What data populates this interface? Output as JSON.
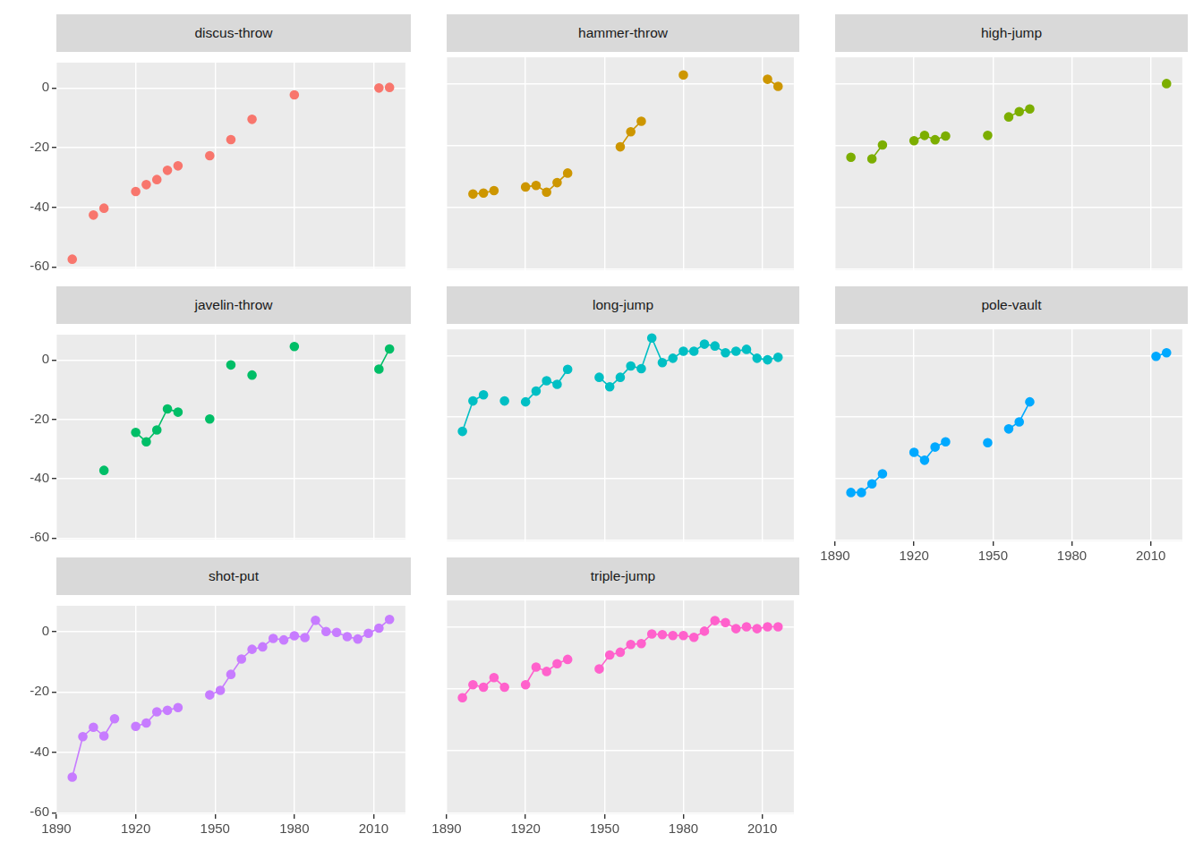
{
  "chart_data": [
    {
      "type": "line",
      "title": "discus-throw",
      "color": "#F8766D",
      "marker": "circle",
      "line_style": "none",
      "grid": true,
      "tick_labels": "y",
      "x": [
        1896,
        1900,
        1904,
        1908,
        1912,
        1916,
        1920,
        1924,
        1928,
        1932,
        1936,
        1940,
        1944,
        1948,
        1952,
        1956,
        1960,
        1964,
        1968,
        1972,
        1976,
        1980,
        1984,
        1988,
        1992,
        1996,
        2000,
        2004,
        2008,
        2012,
        2016
      ],
      "values": [
        -57.4,
        null,
        -42.6,
        -40.3,
        null,
        null,
        -34.7,
        -32.4,
        -30.7,
        -27.6,
        -26.1,
        null,
        null,
        -22.7,
        null,
        -17.3,
        null,
        -10.5,
        null,
        null,
        null,
        -2.3,
        null,
        null,
        null,
        null,
        null,
        null,
        null,
        0,
        0.2
      ],
      "xlim": [
        1890,
        2022
      ],
      "xticks": [
        1890,
        1920,
        1950,
        1980,
        2010
      ],
      "ylim": [
        -60.5,
        8.5
      ],
      "yticks": [
        -60,
        -40,
        -20,
        0
      ]
    },
    {
      "type": "line",
      "title": "hammer-throw",
      "color": "#CD9600",
      "marker": "circle",
      "line_style": "solid",
      "grid": true,
      "tick_labels": false,
      "x": [
        1896,
        1900,
        1904,
        1908,
        1912,
        1916,
        1920,
        1924,
        1928,
        1932,
        1936,
        1940,
        1944,
        1948,
        1952,
        1956,
        1960,
        1964,
        1968,
        1972,
        1976,
        1980,
        1984,
        1988,
        1992,
        1996,
        2000,
        2004,
        2008,
        2012,
        2016
      ],
      "values": [
        null,
        -35.8,
        -35.5,
        -34.7,
        null,
        null,
        -33.5,
        -33,
        -35.2,
        -32.1,
        -29,
        null,
        null,
        null,
        null,
        -20.5,
        -15.6,
        -12.2,
        null,
        null,
        null,
        2.8,
        null,
        null,
        null,
        null,
        null,
        null,
        null,
        1.4,
        -0.9
      ],
      "xlim": [
        1890,
        2022
      ],
      "xticks": [
        1890,
        1920,
        1950,
        1980,
        2010
      ],
      "ylim": [
        -60.5,
        8.5
      ],
      "yticks": [
        -60,
        -40,
        -20,
        0
      ]
    },
    {
      "type": "line",
      "title": "high-jump",
      "color": "#7CAE00",
      "marker": "circle",
      "line_style": "solid",
      "grid": true,
      "tick_labels": false,
      "x": [
        1896,
        1900,
        1904,
        1908,
        1912,
        1916,
        1920,
        1924,
        1928,
        1932,
        1936,
        1940,
        1944,
        1948,
        1952,
        1956,
        1960,
        1964,
        1968,
        1972,
        1976,
        1980,
        1984,
        1988,
        1992,
        1996,
        2000,
        2004,
        2008,
        2012,
        2016
      ],
      "values": [
        -23.9,
        null,
        -24.4,
        -19.9,
        null,
        null,
        -18.5,
        -16.8,
        -18.2,
        -17,
        null,
        null,
        null,
        -16.8,
        null,
        -10.8,
        -9.1,
        -8.2,
        null,
        null,
        null,
        null,
        null,
        null,
        null,
        null,
        null,
        null,
        null,
        null,
        0
      ],
      "xlim": [
        1890,
        2022
      ],
      "xticks": [
        1890,
        1920,
        1950,
        1980,
        2010
      ],
      "ylim": [
        -60.5,
        8.5
      ],
      "yticks": [
        -60,
        -40,
        -20,
        0
      ]
    },
    {
      "type": "line",
      "title": "javelin-throw",
      "color": "#00BE67",
      "marker": "circle",
      "line_style": "solid",
      "grid": true,
      "tick_labels": "y",
      "x": [
        1896,
        1900,
        1904,
        1908,
        1912,
        1916,
        1920,
        1924,
        1928,
        1932,
        1936,
        1940,
        1944,
        1948,
        1952,
        1956,
        1960,
        1964,
        1968,
        1972,
        1976,
        1980,
        1984,
        1988,
        1992,
        1996,
        2000,
        2004,
        2008,
        2012,
        2016
      ],
      "values": [
        null,
        null,
        null,
        -37.2,
        null,
        null,
        -24.4,
        -27.6,
        -23.6,
        -16.5,
        -17.6,
        null,
        null,
        -19.9,
        null,
        -1.7,
        null,
        -5.1,
        null,
        null,
        null,
        4.5,
        null,
        null,
        null,
        null,
        null,
        null,
        null,
        -3.1,
        3.7
      ],
      "xlim": [
        1890,
        2022
      ],
      "xticks": [
        1890,
        1920,
        1950,
        1980,
        2010
      ],
      "ylim": [
        -60.5,
        8.5
      ],
      "yticks": [
        -60,
        -40,
        -20,
        0
      ]
    },
    {
      "type": "line",
      "title": "long-jump",
      "color": "#00BFC4",
      "marker": "circle",
      "line_style": "solid",
      "grid": true,
      "tick_labels": false,
      "x": [
        1896,
        1900,
        1904,
        1908,
        1912,
        1916,
        1920,
        1924,
        1928,
        1932,
        1936,
        1940,
        1944,
        1948,
        1952,
        1956,
        1960,
        1964,
        1968,
        1972,
        1976,
        1980,
        1984,
        1988,
        1992,
        1996,
        2000,
        2004,
        2008,
        2012,
        2016
      ],
      "values": [
        -24.7,
        -14.8,
        -12.8,
        null,
        -14.8,
        null,
        -15.1,
        -11.6,
        -8.2,
        -9.4,
        -4.5,
        null,
        null,
        -7.1,
        -10.2,
        -7.1,
        -3.4,
        -4.3,
        5.7,
        -2.3,
        -0.9,
        1.4,
        1.4,
        3.7,
        3.1,
        0.9,
        1.4,
        2,
        -0.9,
        -1.4,
        -0.6
      ],
      "xlim": [
        1890,
        2022
      ],
      "xticks": [
        1890,
        1920,
        1950,
        1980,
        2010
      ],
      "ylim": [
        -60.5,
        8.5
      ],
      "yticks": [
        -60,
        -40,
        -20,
        0
      ]
    },
    {
      "type": "line",
      "title": "pole-vault",
      "color": "#00A9FF",
      "marker": "circle",
      "line_style": "solid",
      "grid": true,
      "tick_labels": "x",
      "x": [
        1896,
        1900,
        1904,
        1908,
        1912,
        1916,
        1920,
        1924,
        1928,
        1932,
        1936,
        1940,
        1944,
        1948,
        1952,
        1956,
        1960,
        1964,
        1968,
        1972,
        1976,
        1980,
        1984,
        1988,
        1992,
        1996,
        2000,
        2004,
        2008,
        2012,
        2016
      ],
      "values": [
        -44.6,
        -44.6,
        -41.8,
        -38.5,
        null,
        null,
        -31.5,
        -34.1,
        -29.8,
        -28.1,
        null,
        null,
        null,
        -28.4,
        null,
        -23.9,
        -21.6,
        -15.1,
        null,
        null,
        null,
        null,
        null,
        null,
        null,
        null,
        null,
        null,
        null,
        -0.3,
        0.9
      ],
      "xlim": [
        1890,
        2022
      ],
      "xticks": [
        1890,
        1920,
        1950,
        1980,
        2010
      ],
      "ylim": [
        -60.5,
        8.5
      ],
      "yticks": [
        -60,
        -40,
        -20,
        0
      ]
    },
    {
      "type": "line",
      "title": "shot-put",
      "color": "#C77CFF",
      "marker": "circle",
      "line_style": "solid",
      "grid": true,
      "tick_labels": true,
      "x": [
        1896,
        1900,
        1904,
        1908,
        1912,
        1916,
        1920,
        1924,
        1928,
        1932,
        1936,
        1940,
        1944,
        1948,
        1952,
        1956,
        1960,
        1964,
        1968,
        1972,
        1976,
        1980,
        1984,
        1988,
        1992,
        1996,
        2000,
        2004,
        2008,
        2012,
        2016
      ],
      "values": [
        -48.2,
        -34.8,
        -31.7,
        -34.6,
        -28.9,
        null,
        -31.4,
        -30.3,
        -26.6,
        -26.1,
        -25.2,
        null,
        null,
        -21,
        -19.5,
        -14.2,
        -9.1,
        -5.9,
        -5.1,
        -2.3,
        -2.8,
        -1.4,
        -2,
        3.7,
        0,
        -0.3,
        -1.7,
        -2.5,
        -0.6,
        1.1,
        4
      ],
      "xlim": [
        1890,
        2022
      ],
      "xticks": [
        1890,
        1920,
        1950,
        1980,
        2010
      ],
      "ylim": [
        -60.5,
        8.5
      ],
      "yticks": [
        -60,
        -40,
        -20,
        0
      ]
    },
    {
      "type": "line",
      "title": "triple-jump",
      "color": "#FF61CC",
      "marker": "circle",
      "line_style": "solid",
      "grid": true,
      "tick_labels": "x",
      "x": [
        1896,
        1900,
        1904,
        1908,
        1912,
        1916,
        1920,
        1924,
        1928,
        1932,
        1936,
        1940,
        1944,
        1948,
        1952,
        1956,
        1960,
        1964,
        1968,
        1972,
        1976,
        1980,
        1984,
        1988,
        1992,
        1996,
        2000,
        2004,
        2008,
        2012,
        2016
      ],
      "values": [
        -22.9,
        -18.7,
        -19.5,
        -16.4,
        -19.5,
        null,
        -18.7,
        -13,
        -14.4,
        -11.9,
        -10.5,
        null,
        null,
        -13.6,
        -9.1,
        -8.2,
        -5.7,
        -5.4,
        -2.3,
        -2.5,
        -2.8,
        -2.8,
        -3.4,
        -1.4,
        2,
        1.4,
        -0.6,
        0,
        -0.6,
        0,
        0
      ],
      "xlim": [
        1890,
        2022
      ],
      "xticks": [
        1890,
        1920,
        1950,
        1980,
        2010
      ],
      "ylim": [
        -60.5,
        8.5
      ],
      "yticks": [
        -60,
        -40,
        -20,
        0
      ]
    }
  ]
}
